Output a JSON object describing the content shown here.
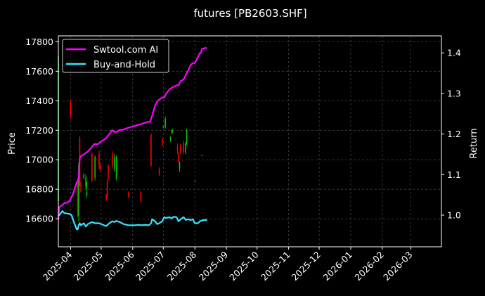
{
  "chart_data": {
    "type": "line",
    "title": "futures [PB2603.SHF]",
    "ylabel_left": "Price",
    "ylabel_right": "Return",
    "xlabel": "",
    "x_ticks": [
      "2025-04",
      "2025-05",
      "2025-06",
      "2025-07",
      "2025-08",
      "2025-09",
      "2025-10",
      "2025-11",
      "2025-12",
      "2026-01",
      "2026-02",
      "2026-03"
    ],
    "x_range": [
      "2025-03-20",
      "2026-03-31"
    ],
    "y_left_range": [
      16410,
      17840
    ],
    "y_left_ticks": [
      16600,
      16800,
      17000,
      17200,
      17400,
      17600,
      17800
    ],
    "y_right_range": [
      0.922,
      1.442
    ],
    "y_right_ticks": [
      "1.0",
      "1.1",
      "1.2",
      "1.3",
      "1.4"
    ],
    "grid": true,
    "legend_position": "top-left",
    "colors": {
      "up": "#00cc00",
      "down": "#ff0000",
      "ai": "#ff00ff",
      "bh": "#33e6ff",
      "background": "#000000",
      "frame": "#ffffff"
    },
    "series": [
      {
        "name": "Swtool.com AI",
        "axis": "right",
        "points": [
          [
            "2025-03-20",
            0.99
          ],
          [
            "2025-03-21",
            1.02
          ],
          [
            "2025-03-24",
            1.025
          ],
          [
            "2025-03-26",
            1.03
          ],
          [
            "2025-03-28",
            1.03
          ],
          [
            "2025-03-31",
            1.035
          ],
          [
            "2025-04-03",
            1.05
          ],
          [
            "2025-04-07",
            1.08
          ],
          [
            "2025-04-09",
            1.09
          ],
          [
            "2025-04-10",
            1.14
          ],
          [
            "2025-04-11",
            1.145
          ],
          [
            "2025-04-14",
            1.15
          ],
          [
            "2025-04-17",
            1.155
          ],
          [
            "2025-04-21",
            1.165
          ],
          [
            "2025-04-24",
            1.175
          ],
          [
            "2025-04-28",
            1.175
          ],
          [
            "2025-04-30",
            1.18
          ],
          [
            "2025-05-06",
            1.19
          ],
          [
            "2025-05-09",
            1.2
          ],
          [
            "2025-05-12",
            1.21
          ],
          [
            "2025-05-14",
            1.205
          ],
          [
            "2025-05-16",
            1.205
          ],
          [
            "2025-05-19",
            1.21
          ],
          [
            "2025-05-22",
            1.21
          ],
          [
            "2025-05-27",
            1.215
          ],
          [
            "2025-06-03",
            1.22
          ],
          [
            "2025-06-10",
            1.225
          ],
          [
            "2025-06-16",
            1.23
          ],
          [
            "2025-06-18",
            1.23
          ],
          [
            "2025-06-20",
            1.245
          ],
          [
            "2025-06-23",
            1.27
          ],
          [
            "2025-06-25",
            1.28
          ],
          [
            "2025-06-27",
            1.285
          ],
          [
            "2025-06-30",
            1.29
          ],
          [
            "2025-07-02",
            1.29
          ],
          [
            "2025-07-04",
            1.3
          ],
          [
            "2025-07-07",
            1.31
          ],
          [
            "2025-07-10",
            1.315
          ],
          [
            "2025-07-14",
            1.32
          ],
          [
            "2025-07-16",
            1.32
          ],
          [
            "2025-07-18",
            1.33
          ],
          [
            "2025-07-21",
            1.335
          ],
          [
            "2025-07-23",
            1.345
          ],
          [
            "2025-07-25",
            1.355
          ],
          [
            "2025-07-28",
            1.37
          ],
          [
            "2025-07-30",
            1.375
          ],
          [
            "2025-08-01",
            1.375
          ],
          [
            "2025-08-04",
            1.39
          ],
          [
            "2025-08-06",
            1.4
          ],
          [
            "2025-08-07",
            1.4
          ],
          [
            "2025-08-08",
            1.41
          ],
          [
            "2025-08-11",
            1.412
          ],
          [
            "2025-08-13",
            1.412
          ]
        ]
      },
      {
        "name": "Buy-and-Hold",
        "axis": "right",
        "points": [
          [
            "2025-03-20",
            1.0
          ],
          [
            "2025-03-21",
            1.0
          ],
          [
            "2025-03-24",
            1.01
          ],
          [
            "2025-03-26",
            1.005
          ],
          [
            "2025-03-31",
            1.003
          ],
          [
            "2025-04-02",
            1.0
          ],
          [
            "2025-04-04",
            0.985
          ],
          [
            "2025-04-07",
            0.965
          ],
          [
            "2025-04-08",
            0.965
          ],
          [
            "2025-04-09",
            0.975
          ],
          [
            "2025-04-10",
            0.98
          ],
          [
            "2025-04-11",
            0.975
          ],
          [
            "2025-04-14",
            0.98
          ],
          [
            "2025-04-16",
            0.972
          ],
          [
            "2025-04-18",
            0.978
          ],
          [
            "2025-04-22",
            0.983
          ],
          [
            "2025-04-25",
            0.98
          ],
          [
            "2025-04-29",
            0.98
          ],
          [
            "2025-05-06",
            0.973
          ],
          [
            "2025-05-09",
            0.98
          ],
          [
            "2025-05-12",
            0.985
          ],
          [
            "2025-05-14",
            0.983
          ],
          [
            "2025-05-16",
            0.986
          ],
          [
            "2025-05-20",
            0.982
          ],
          [
            "2025-05-23",
            0.978
          ],
          [
            "2025-05-28",
            0.975
          ],
          [
            "2025-06-03",
            0.975
          ],
          [
            "2025-06-06",
            0.976
          ],
          [
            "2025-06-10",
            0.975
          ],
          [
            "2025-06-13",
            0.976
          ],
          [
            "2025-06-17",
            0.975
          ],
          [
            "2025-06-19",
            0.98
          ],
          [
            "2025-06-20",
            0.99
          ],
          [
            "2025-06-23",
            0.985
          ],
          [
            "2025-06-25",
            0.978
          ],
          [
            "2025-06-27",
            0.98
          ],
          [
            "2025-06-30",
            0.985
          ],
          [
            "2025-07-02",
            0.995
          ],
          [
            "2025-07-04",
            0.993
          ],
          [
            "2025-07-07",
            0.995
          ],
          [
            "2025-07-09",
            0.992
          ],
          [
            "2025-07-11",
            0.996
          ],
          [
            "2025-07-14",
            0.995
          ],
          [
            "2025-07-16",
            0.985
          ],
          [
            "2025-07-18",
            0.99
          ],
          [
            "2025-07-21",
            0.995
          ],
          [
            "2025-07-23",
            0.988
          ],
          [
            "2025-07-25",
            0.99
          ],
          [
            "2025-07-28",
            0.988
          ],
          [
            "2025-07-30",
            0.99
          ],
          [
            "2025-08-01",
            0.98
          ],
          [
            "2025-08-04",
            0.98
          ],
          [
            "2025-08-06",
            0.985
          ],
          [
            "2025-08-08",
            0.987
          ],
          [
            "2025-08-11",
            0.988
          ],
          [
            "2025-08-13",
            0.988
          ]
        ]
      }
    ],
    "candles": [
      {
        "date": "2025-03-20",
        "open": 16720,
        "high": 17720,
        "low": 16700,
        "close": 17700
      },
      {
        "date": "2025-03-24",
        "open": 17760,
        "high": 17780,
        "low": 17740,
        "close": 17760
      },
      {
        "date": "2025-04-01",
        "open": 17400,
        "high": 17410,
        "low": 17280,
        "close": 17300
      },
      {
        "date": "2025-04-08",
        "open": 16860,
        "high": 16880,
        "low": 16610,
        "close": 16620
      },
      {
        "date": "2025-04-09",
        "open": 16620,
        "high": 16980,
        "low": 16580,
        "close": 16960
      },
      {
        "date": "2025-04-10",
        "open": 17150,
        "high": 17160,
        "low": 16820,
        "close": 16830
      },
      {
        "date": "2025-04-11",
        "open": 16830,
        "high": 16850,
        "low": 16780,
        "close": 16820
      },
      {
        "date": "2025-04-14",
        "open": 16880,
        "high": 16910,
        "low": 16870,
        "close": 16900
      },
      {
        "date": "2025-04-16",
        "open": 16820,
        "high": 16900,
        "low": 16800,
        "close": 16880
      },
      {
        "date": "2025-04-17",
        "open": 16760,
        "high": 16850,
        "low": 16740,
        "close": 16780
      },
      {
        "date": "2025-04-22",
        "open": 17040,
        "high": 17050,
        "low": 16850,
        "close": 16860
      },
      {
        "date": "2025-04-25",
        "open": 16880,
        "high": 17030,
        "low": 16860,
        "close": 17020
      },
      {
        "date": "2025-04-29",
        "open": 17040,
        "high": 17060,
        "low": 16940,
        "close": 16960
      },
      {
        "date": "2025-04-30",
        "open": 16960,
        "high": 16980,
        "low": 16920,
        "close": 16930
      },
      {
        "date": "2025-05-06",
        "open": 16760,
        "high": 16770,
        "low": 16720,
        "close": 16730
      },
      {
        "date": "2025-05-07",
        "open": 16860,
        "high": 16870,
        "low": 16750,
        "close": 16760
      },
      {
        "date": "2025-05-08",
        "open": 16960,
        "high": 16970,
        "low": 16860,
        "close": 16880
      },
      {
        "date": "2025-05-12",
        "open": 17040,
        "high": 17060,
        "low": 16940,
        "close": 16960
      },
      {
        "date": "2025-05-14",
        "open": 16940,
        "high": 17040,
        "low": 16920,
        "close": 17020
      },
      {
        "date": "2025-05-16",
        "open": 16870,
        "high": 17030,
        "low": 16860,
        "close": 17020
      },
      {
        "date": "2025-05-28",
        "open": 16780,
        "high": 16785,
        "low": 16740,
        "close": 16750
      },
      {
        "date": "2025-06-09",
        "open": 16780,
        "high": 16790,
        "low": 16710,
        "close": 16720
      },
      {
        "date": "2025-06-19",
        "open": 17170,
        "high": 17180,
        "low": 16950,
        "close": 16960
      },
      {
        "date": "2025-06-27",
        "open": 16940,
        "high": 16950,
        "low": 16890,
        "close": 16900
      },
      {
        "date": "2025-06-30",
        "open": 17140,
        "high": 17150,
        "low": 17090,
        "close": 17100
      },
      {
        "date": "2025-07-01",
        "open": 17220,
        "high": 17230,
        "low": 17215,
        "close": 17225
      },
      {
        "date": "2025-07-03",
        "open": 17220,
        "high": 17290,
        "low": 17210,
        "close": 17280
      },
      {
        "date": "2025-07-08",
        "open": 17140,
        "high": 17160,
        "low": 17120,
        "close": 17150
      },
      {
        "date": "2025-07-09",
        "open": 17200,
        "high": 17210,
        "low": 17170,
        "close": 17180
      },
      {
        "date": "2025-07-10",
        "open": 17200,
        "high": 17210,
        "low": 17180,
        "close": 17200
      },
      {
        "date": "2025-07-15",
        "open": 17090,
        "high": 17110,
        "low": 17040,
        "close": 17060
      },
      {
        "date": "2025-07-16",
        "open": 17040,
        "high": 17050,
        "low": 16980,
        "close": 16990
      },
      {
        "date": "2025-07-17",
        "open": 16940,
        "high": 16990,
        "low": 16920,
        "close": 16980
      },
      {
        "date": "2025-07-18",
        "open": 17100,
        "high": 17110,
        "low": 17040,
        "close": 17050
      },
      {
        "date": "2025-07-21",
        "open": 17110,
        "high": 17130,
        "low": 17040,
        "close": 17050
      },
      {
        "date": "2025-07-23",
        "open": 17050,
        "high": 17120,
        "low": 17040,
        "close": 17110
      },
      {
        "date": "2025-07-24",
        "open": 17110,
        "high": 17210,
        "low": 17100,
        "close": 17200
      },
      {
        "date": "2025-08-01",
        "open": 16855,
        "high": 16860,
        "low": 16850,
        "close": 16855
      },
      {
        "date": "2025-08-08",
        "open": 17030,
        "high": 17035,
        "low": 17025,
        "close": 17030
      }
    ]
  }
}
